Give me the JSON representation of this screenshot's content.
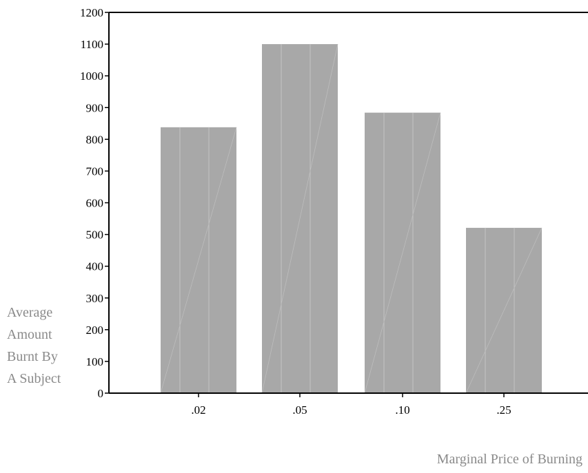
{
  "chart_data": {
    "type": "bar",
    "categories": [
      ".02",
      ".05",
      ".10",
      ".25"
    ],
    "values": [
      838,
      1100,
      884,
      521
    ],
    "xlabel": "Marginal Price of Burning",
    "ylabel_lines": [
      "Average",
      "Amount",
      "Burnt By",
      "A Subject"
    ],
    "ylim": [
      0,
      1200
    ],
    "yticks": [
      0,
      100,
      200,
      300,
      400,
      500,
      600,
      700,
      800,
      900,
      1000,
      1100,
      1200
    ],
    "grid": false,
    "legend": "none",
    "bar_color": "#a8a8a8",
    "axis_color": "#000000",
    "label_color": "#8a8a8a"
  }
}
